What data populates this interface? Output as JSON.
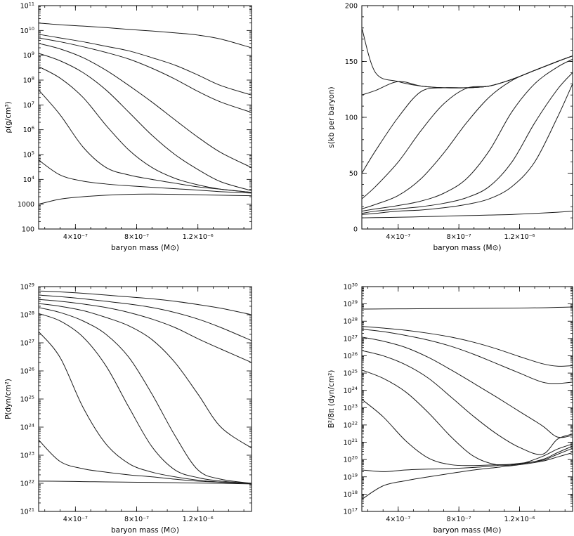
{
  "chart_data": [
    {
      "type": "line",
      "ylabel": "ρ(g/cm³)",
      "xlabel": "baryon mass (M⊙)",
      "yscale": "log",
      "xlim": [
        1.6e-07,
        1.55e-06
      ],
      "ylim": [
        100,
        100000000000.0
      ],
      "x_ticks": [
        {
          "value": 4e-07,
          "label": "4×10⁻⁷"
        },
        {
          "value": 8e-07,
          "label": "8×10⁻⁷"
        },
        {
          "value": 1.2e-06,
          "label": "1.2×10⁻⁶"
        }
      ],
      "y_ticks": [
        {
          "value": 100,
          "base": "100",
          "exp": ""
        },
        {
          "value": 1000,
          "base": "1000",
          "exp": ""
        },
        {
          "value": 10000.0,
          "base": "10",
          "exp": "4"
        },
        {
          "value": 100000.0,
          "base": "10",
          "exp": "5"
        },
        {
          "value": 1000000.0,
          "base": "10",
          "exp": "6"
        },
        {
          "value": 10000000.0,
          "base": "10",
          "exp": "7"
        },
        {
          "value": 100000000.0,
          "base": "10",
          "exp": "8"
        },
        {
          "value": 1000000000.0,
          "base": "10",
          "exp": "9"
        },
        {
          "value": 10000000000.0,
          "base": "10",
          "exp": "10"
        },
        {
          "value": 100000000000.0,
          "base": "10",
          "exp": "11"
        }
      ],
      "x": [
        1.6e-07,
        3e-07,
        4.5e-07,
        6e-07,
        7.5e-07,
        9e-07,
        1.05e-06,
        1.2e-06,
        1.35e-06,
        1.55e-06
      ],
      "series": [
        {
          "values": [
            20000000000.0,
            17000000000.0,
            15000000000.0,
            13000000000.0,
            11000000000.0,
            9500000000.0,
            8000000000.0,
            6500000000.0,
            4500000000.0,
            2000000000.0
          ]
        },
        {
          "values": [
            7000000000.0,
            5000000000.0,
            3500000000.0,
            2300000000.0,
            1500000000.0,
            800000000.0,
            400000000.0,
            160000000.0,
            60000000.0,
            25000000.0
          ]
        },
        {
          "values": [
            5000000000.0,
            3500000000.0,
            2200000000.0,
            1300000000.0,
            700000000.0,
            300000000.0,
            110000000.0,
            35000000.0,
            13000000.0,
            5000000.0
          ]
        },
        {
          "values": [
            3000000000.0,
            1800000000.0,
            800000000.0,
            250000000.0,
            60000000.0,
            13000000.0,
            2500000.0,
            500000.0,
            120000.0,
            30000.0
          ]
        },
        {
          "values": [
            1200000000.0,
            600000000.0,
            200000000.0,
            40000000.0,
            5000000.0,
            600000.0,
            100000.0,
            25000.0,
            8000.0,
            3500.0
          ]
        },
        {
          "values": [
            350000000.0,
            120000000.0,
            20000000.0,
            1500000.0,
            150000.0,
            30000.0,
            11000.0,
            6000.0,
            4000.0,
            3000.0
          ]
        },
        {
          "values": [
            40000000.0,
            4000000.0,
            200000.0,
            30000.0,
            15000.0,
            10000.0,
            7000.0,
            5000.0,
            4000.0,
            3000.0
          ]
        },
        {
          "values": [
            60000.0,
            15000.0,
            8500.0,
            6500.0,
            5500.0,
            4800.0,
            4200.0,
            3700.0,
            3200.0,
            2800.0
          ]
        },
        {
          "values": [
            1000.0,
            1600.0,
            2000.0,
            2300.0,
            2500.0,
            2550.0,
            2500.0,
            2400.0,
            2300.0,
            2200.0
          ]
        }
      ]
    },
    {
      "type": "line",
      "ylabel": "s(kb per baryon)",
      "xlabel": "baryon mass (M⊙)",
      "yscale": "linear",
      "xlim": [
        1.6e-07,
        1.55e-06
      ],
      "ylim": [
        0,
        200
      ],
      "x_ticks": [
        {
          "value": 4e-07,
          "label": "4×10⁻⁷"
        },
        {
          "value": 8e-07,
          "label": "8×10⁻⁷"
        },
        {
          "value": 1.2e-06,
          "label": "1.2×10⁻⁶"
        }
      ],
      "y_ticks": [
        {
          "value": 0,
          "base": "0",
          "exp": ""
        },
        {
          "value": 50,
          "base": "50",
          "exp": ""
        },
        {
          "value": 100,
          "base": "100",
          "exp": ""
        },
        {
          "value": 150,
          "base": "150",
          "exp": ""
        },
        {
          "value": 200,
          "base": "200",
          "exp": ""
        }
      ],
      "x": [
        1.6e-07,
        2.5e-07,
        4e-07,
        5.5e-07,
        7e-07,
        8.5e-07,
        1e-06,
        1.15e-06,
        1.3e-06,
        1.45e-06,
        1.55e-06
      ],
      "series": [
        {
          "values": [
            180,
            140,
            132,
            128,
            126.5,
            126.5,
            128,
            134,
            142,
            150,
            155
          ]
        },
        {
          "values": [
            120,
            124,
            132,
            128,
            126.5,
            126.5,
            128,
            134,
            142,
            150,
            155
          ]
        },
        {
          "values": [
            50,
            70,
            100,
            123,
            126.5,
            126.5,
            128,
            134,
            142,
            150,
            155
          ]
        },
        {
          "values": [
            27,
            38,
            60,
            88,
            112,
            126,
            128,
            134,
            142,
            150,
            155
          ]
        },
        {
          "values": [
            18,
            22,
            30,
            45,
            68,
            95,
            118,
            133,
            142,
            150,
            155
          ]
        },
        {
          "values": [
            16,
            18,
            21,
            25,
            32,
            45,
            70,
            105,
            130,
            145,
            152
          ]
        },
        {
          "values": [
            14,
            16,
            18,
            20,
            23,
            28,
            38,
            60,
            95,
            125,
            140
          ]
        },
        {
          "values": [
            13,
            14,
            16,
            17,
            19,
            22,
            27,
            38,
            60,
            100,
            130
          ]
        },
        {
          "values": [
            10,
            10.2,
            10.5,
            11,
            11.5,
            12,
            12.5,
            13,
            14,
            15,
            16
          ]
        }
      ]
    },
    {
      "type": "line",
      "ylabel": "P(dyn/cm²)",
      "xlabel": "baryon mass (M⊙)",
      "yscale": "log",
      "xlim": [
        1.6e-07,
        1.55e-06
      ],
      "ylim": [
        1e+21,
        1e+29
      ],
      "x_ticks": [
        {
          "value": 4e-07,
          "label": "4×10⁻⁷"
        },
        {
          "value": 8e-07,
          "label": "8×10⁻⁷"
        },
        {
          "value": 1.2e-06,
          "label": "1.2×10⁻⁶"
        }
      ],
      "y_ticks": [
        {
          "value": 1e+21,
          "base": "10",
          "exp": "21"
        },
        {
          "value": 1e+22,
          "base": "10",
          "exp": "22"
        },
        {
          "value": 1e+23,
          "base": "10",
          "exp": "23"
        },
        {
          "value": 1e+24,
          "base": "10",
          "exp": "24"
        },
        {
          "value": 1e+25,
          "base": "10",
          "exp": "25"
        },
        {
          "value": 1e+26,
          "base": "10",
          "exp": "26"
        },
        {
          "value": 1e+27,
          "base": "10",
          "exp": "27"
        },
        {
          "value": 1e+28,
          "base": "10",
          "exp": "28"
        },
        {
          "value": 1e+29,
          "base": "10",
          "exp": "29"
        }
      ],
      "x": [
        1.6e-07,
        3e-07,
        4.5e-07,
        6e-07,
        7.5e-07,
        9e-07,
        1.05e-06,
        1.2e-06,
        1.35e-06,
        1.55e-06
      ],
      "series": [
        {
          "values": [
            7e+28,
            6.5e+28,
            5.8e+28,
            5e+28,
            4.3e+28,
            3.7e+28,
            3e+28,
            2.3e+28,
            1.7e+28,
            1e+28
          ]
        },
        {
          "values": [
            5e+28,
            4.4e+28,
            3.7e+28,
            3e+28,
            2.4e+28,
            1.8e+28,
            1.2e+28,
            7e+27,
            3.5e+27,
            1.2e+27
          ]
        },
        {
          "values": [
            3.5e+28,
            3e+28,
            2.4e+28,
            1.8e+28,
            1.2e+28,
            7e+27,
            3.5e+27,
            1.4e+27,
            6e+26,
            2e+26
          ]
        },
        {
          "values": [
            2.5e+28,
            2e+28,
            1.4e+28,
            8e+27,
            4e+27,
            1.3e+27,
            2e+26,
            1.5e+25,
            1e+24,
            1.8e+23
          ]
        },
        {
          "values": [
            1.8e+28,
            1.2e+28,
            6e+27,
            2e+27,
            3e+26,
            1.5e+25,
            5e+23,
            3e+22,
            1.4e+22,
            1e+22
          ]
        },
        {
          "values": [
            1.1e+28,
            6e+27,
            1.6e+27,
            1.5e+26,
            5e+24,
            2e+23,
            3e+22,
            1.6e+22,
            1.2e+22,
            1e+22
          ]
        },
        {
          "values": [
            2.5e+27,
            3e+26,
            5e+24,
            2.5e+23,
            5e+22,
            2.5e+22,
            1.7e+22,
            1.3e+22,
            1.1e+22,
            1e+22
          ]
        },
        {
          "values": [
            3.5e+23,
            6e+22,
            3.3e+22,
            2.5e+22,
            2e+22,
            1.7e+22,
            1.4e+22,
            1.2e+22,
            1.1e+22,
            1e+22
          ]
        },
        {
          "values": [
            1.2e+22,
            1.18e+22,
            1.15e+22,
            1.12e+22,
            1.1e+22,
            1.08e+22,
            1.05e+22,
            1.02e+22,
            1e+22,
            9.5e+21
          ]
        }
      ]
    },
    {
      "type": "line",
      "ylabel": "B²/8π (dyn/cm²)",
      "xlabel": "baryon mass (M⊙)",
      "yscale": "log",
      "xlim": [
        1.6e-07,
        1.55e-06
      ],
      "ylim": [
        1e+17,
        1e+30
      ],
      "x_ticks": [
        {
          "value": 4e-07,
          "label": "4×10⁻⁷"
        },
        {
          "value": 8e-07,
          "label": "8×10⁻⁷"
        },
        {
          "value": 1.2e-06,
          "label": "1.2×10⁻⁶"
        }
      ],
      "y_ticks": [
        {
          "value": 1e+17,
          "base": "10",
          "exp": "17"
        },
        {
          "value": 1e+18,
          "base": "10",
          "exp": "18"
        },
        {
          "value": 1e+19,
          "base": "10",
          "exp": "19"
        },
        {
          "value": 1e+20,
          "base": "10",
          "exp": "20"
        },
        {
          "value": 1e+21,
          "base": "10",
          "exp": "21"
        },
        {
          "value": 1e+22,
          "base": "10",
          "exp": "22"
        },
        {
          "value": 1e+23,
          "base": "10",
          "exp": "23"
        },
        {
          "value": 1e+24,
          "base": "10",
          "exp": "24"
        },
        {
          "value": 1e+25,
          "base": "10",
          "exp": "25"
        },
        {
          "value": 1e+26,
          "base": "10",
          "exp": "26"
        },
        {
          "value": 1e+27,
          "base": "10",
          "exp": "27"
        },
        {
          "value": 1e+28,
          "base": "10",
          "exp": "28"
        },
        {
          "value": 1e+29,
          "base": "10",
          "exp": "29"
        },
        {
          "value": 1e+30,
          "base": "10",
          "exp": "30"
        }
      ],
      "x": [
        1.6e-07,
        3e-07,
        4.5e-07,
        6e-07,
        7.5e-07,
        9e-07,
        1.05e-06,
        1.2e-06,
        1.35e-06,
        1.45e-06,
        1.55e-06
      ],
      "series": [
        {
          "values": [
            5e+28,
            5.1e+28,
            5.2e+28,
            5.3e+28,
            5.4e+28,
            5.5e+28,
            5.6e+28,
            5.8e+28,
            6e+28,
            6.3e+28,
            6.6e+28
          ]
        },
        {
          "values": [
            5e+27,
            4e+27,
            3e+27,
            2e+27,
            1.2e+27,
            6e+26,
            2.5e+26,
            9e+25,
            3.5e+25,
            2.5e+25,
            2.7e+25
          ]
        },
        {
          "values": [
            3.5e+27,
            2.5e+27,
            1.5e+27,
            8e+26,
            3.5e+26,
            1.2e+26,
            3.5e+25,
            1e+25,
            3e+24,
            2.5e+24,
            3e+24
          ]
        },
        {
          "values": [
            1.2e+27,
            7e+26,
            3e+26,
            8e+25,
            1.5e+25,
            2.5e+24,
            4e+23,
            6e+22,
            9e+21,
            2e+21,
            2.5e+21
          ]
        },
        {
          "values": [
            2e+26,
            1e+26,
            3e+25,
            5e+24,
            4e+23,
            3e+22,
            3e+21,
            5e+20,
            2e+20,
            1.5e+21,
            3e+21
          ]
        },
        {
          "values": [
            1.5e+25,
            5e+24,
            8e+23,
            5e+22,
            2e+21,
            1.5e+20,
            5e+19,
            5.5e+19,
            1.5e+20,
            4e+20,
            8e+20
          ]
        },
        {
          "values": [
            3e+23,
            3e+22,
            1.2e+21,
            1.2e+20,
            5e+19,
            4.5e+19,
            5e+19,
            5.5e+19,
            1e+20,
            2.5e+20,
            6e+20
          ]
        },
        {
          "values": [
            2.5e+19,
            2e+19,
            2.5e+19,
            2.8e+19,
            3e+19,
            3.5e+19,
            4.5e+19,
            6e+19,
            9e+19,
            2e+20,
            4.5e+20
          ]
        },
        {
          "values": [
            5e+17,
            3e+18,
            6e+18,
            1e+19,
            1.6e+19,
            2.5e+19,
            3.5e+19,
            5e+19,
            8e+19,
            1.4e+20,
            2.5e+20
          ]
        }
      ]
    }
  ]
}
